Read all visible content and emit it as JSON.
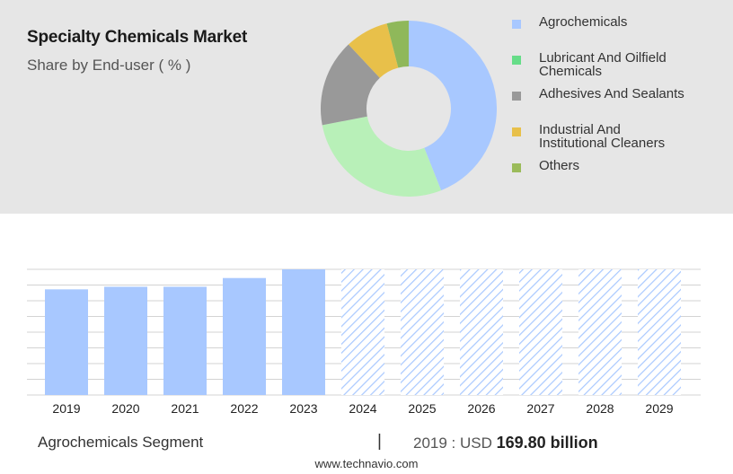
{
  "title": "Specialty Chemicals Market",
  "subtitle": "Share by End-user ( % )",
  "footer": {
    "segment": "Agrochemicals Segment",
    "divider": "|",
    "year_prefix": "2019 : USD",
    "value": "169.80 billion",
    "url": "www.technavio.com"
  },
  "chart_data": [
    {
      "type": "pie",
      "donut": true,
      "slices": [
        {
          "label": "Agrochemicals",
          "value": 44,
          "color": "#a8c8ff"
        },
        {
          "label": "Lubricant And Oilfield Chemicals",
          "value": 28,
          "color": "#b8f0b8"
        },
        {
          "label": "Adhesives And Sealants",
          "value": 16,
          "color": "#999999"
        },
        {
          "label": "Industrial And Institutional Cleaners",
          "value": 8,
          "color": "#e8c04a"
        },
        {
          "label": "Others",
          "value": 4,
          "color": "#8fb85a"
        }
      ],
      "legend": [
        {
          "label_lines": [
            "Agrochemicals"
          ],
          "color": "#a8c8ff"
        },
        {
          "label_lines": [
            "Lubricant And Oilfield",
            "Chemicals"
          ],
          "color": "#66dd88"
        },
        {
          "label_lines": [
            "Adhesives And Sealants"
          ],
          "color": "#999999"
        },
        {
          "label_lines": [
            "Industrial And",
            "Institutional Cleaners"
          ],
          "color": "#e8c04a"
        },
        {
          "label_lines": [
            "Others"
          ],
          "color": "#9bbb5a"
        }
      ],
      "legend_position": "right"
    },
    {
      "type": "bar",
      "categories": [
        "2019",
        "2020",
        "2021",
        "2022",
        "2023",
        "2024",
        "2025",
        "2026",
        "2027",
        "2028",
        "2029"
      ],
      "values": [
        169.8,
        174,
        174,
        188,
        202,
        202,
        202,
        202,
        202,
        202,
        202
      ],
      "forecast_from": "2024",
      "ylim": [
        0,
        202
      ],
      "grid": true,
      "bar_color": "#a8c8ff",
      "forecast_style": "hatched"
    }
  ]
}
